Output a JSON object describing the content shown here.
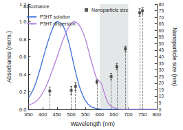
{
  "chart_data": {
    "type": "line",
    "x_label": "Wavelength (nm)",
    "y_label": "Absorbance (norm.)",
    "y2_label": "Nanoparticle size (nm)",
    "annotations": [
      "Absorbance"
    ],
    "legend": "upper left",
    "grid": false,
    "xlim": [
      350,
      800
    ],
    "xticks": [
      350,
      400,
      450,
      500,
      550,
      600,
      650,
      700,
      750,
      800
    ],
    "ylim": [
      0,
      1.2
    ],
    "yticks": [
      {
        "value": 0,
        "label": "0.0"
      },
      0.2,
      0.4,
      0.6,
      0.8,
      {
        "value": 1,
        "label": "1.0"
      },
      1.2
    ],
    "y2lim": [
      0,
      80
    ],
    "y2ticks": [
      0,
      5,
      10,
      15,
      20,
      25,
      30,
      35,
      40,
      45,
      50,
      55,
      60,
      65,
      70,
      75,
      80
    ],
    "highlight_range": [
      600,
      700
    ],
    "series": [
      {
        "name": "P3HT solution",
        "type": "line",
        "color": "#3b6fdc",
        "line_style": "solid",
        "x": [
          350,
          370,
          390,
          410,
          430,
          450,
          470,
          490,
          510,
          530,
          550,
          570,
          590,
          610,
          800
        ],
        "values": [
          0.13,
          0.25,
          0.45,
          0.68,
          0.88,
          1.0,
          0.96,
          0.78,
          0.5,
          0.25,
          0.1,
          0.03,
          0.01,
          0,
          0
        ]
      },
      {
        "name": "P3HT dispersion",
        "type": "line",
        "color": "#b27fd9",
        "line_style": "solid",
        "x": [
          350,
          380,
          410,
          440,
          470,
          490,
          510,
          530,
          550,
          560,
          575,
          590,
          605,
          615,
          630,
          650,
          680,
          800
        ],
        "values": [
          0.05,
          0.1,
          0.25,
          0.5,
          0.78,
          0.93,
          1.0,
          0.95,
          0.8,
          0.68,
          0.5,
          0.35,
          0.3,
          0.2,
          0.07,
          0.02,
          0,
          0
        ]
      },
      {
        "name": "Nanoparticle size",
        "type": "scatter",
        "axis": "y2",
        "color": "#333333",
        "marker": "square",
        "x": [
          425,
          500,
          515,
          590,
          640,
          660,
          690,
          740,
          750
        ],
        "values": [
          14,
          14.5,
          17.5,
          21,
          25,
          32.5,
          46,
          73.5,
          75
        ],
        "errors": [
          3,
          3,
          3,
          1.5,
          2.5,
          2.5,
          2,
          3,
          2.5
        ]
      }
    ]
  }
}
